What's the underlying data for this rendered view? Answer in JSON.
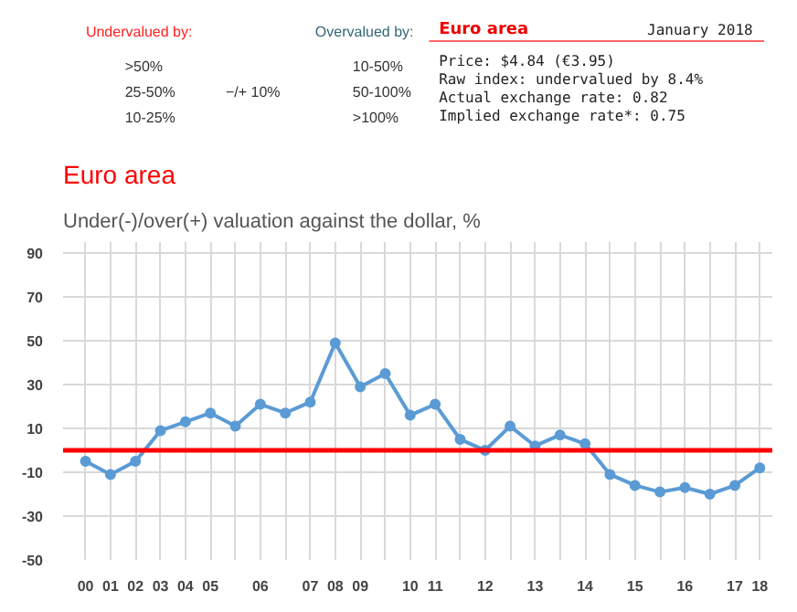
{
  "chart_data": {
    "type": "line",
    "title": "Euro area",
    "subtitle": "Under(-)/over(+) valuation against the dollar, %",
    "categories": [
      "00",
      "01",
      "02",
      "03",
      "04",
      "05",
      null,
      "06",
      null,
      "07",
      "08",
      "09",
      null,
      "10",
      "11",
      null,
      "12",
      null,
      "13",
      null,
      "14",
      null,
      "15",
      null,
      "16",
      null,
      "17",
      "18"
    ],
    "series": [
      {
        "color": "#5b9bd5",
        "values": [
          -5,
          -11,
          -5,
          9,
          13,
          17,
          11,
          21,
          17,
          22,
          49,
          29,
          35,
          16,
          21,
          5,
          0,
          11,
          2,
          7,
          3,
          -11,
          -16,
          -19,
          -17,
          -20,
          -16,
          -8
        ]
      }
    ],
    "ylim": [
      -50,
      95
    ],
    "yticks": [
      -50,
      -30,
      -10,
      10,
      30,
      50,
      70,
      90
    ],
    "grid": true,
    "marker": "circle",
    "line_style": "solid",
    "ref_lines": [
      {
        "axis": "y",
        "value": 0,
        "color": "#ff0000"
      }
    ],
    "annotations": [
      "Undervalued by:",
      ">50%",
      "25-50%",
      "10-25%",
      "−/+ 10%",
      "Overvalued by:",
      "10-50%",
      "50-100%",
      ">100%",
      "Euro area",
      "January 2018",
      "Price: $4.84 (€3.95)",
      "Raw index: undervalued by 8.4%",
      "Actual exchange rate: 0.82",
      "Implied exchange rate*: 0.75"
    ]
  }
}
